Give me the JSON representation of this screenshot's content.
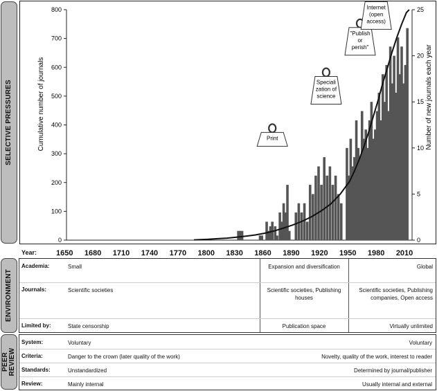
{
  "side_labels": {
    "selective": "SELECTIVE PRESSURES",
    "environment": "ENVIRONMENT",
    "peer_review": "PEER REVIEW"
  },
  "chart_data": {
    "type": "bar+line",
    "xlim": [
      1650,
      2016
    ],
    "left_axis": {
      "label": "Cumulative number of journals",
      "ylim": [
        0,
        800
      ],
      "ticks": [
        0,
        100,
        200,
        300,
        400,
        500,
        600,
        700,
        800
      ]
    },
    "right_axis": {
      "label": "Number of new journals each year",
      "ylim": [
        0,
        25
      ],
      "ticks": [
        0,
        5,
        10,
        15,
        20,
        25
      ]
    },
    "x_ticks": [
      1650,
      1680,
      1710,
      1740,
      1770,
      1800,
      1830,
      1860,
      1890,
      1920,
      1950,
      1980,
      2010
    ],
    "x_label": "Year:",
    "line_series": {
      "name": "Cumulative number of journals",
      "x": [
        1785,
        1800,
        1810,
        1820,
        1830,
        1840,
        1850,
        1860,
        1870,
        1880,
        1890,
        1900,
        1910,
        1920,
        1930,
        1940,
        1950,
        1955,
        1960,
        1965,
        1970,
        1975,
        1980,
        1985,
        1990,
        1995,
        2000,
        2005,
        2010,
        2013
      ],
      "y": [
        1,
        3,
        5,
        7,
        10,
        14,
        18,
        24,
        32,
        42,
        53,
        66,
        82,
        102,
        126,
        160,
        205,
        240,
        280,
        325,
        375,
        430,
        485,
        545,
        600,
        655,
        705,
        750,
        790,
        800
      ]
    },
    "bar_series": {
      "name": "Number of new journals each year",
      "x": [
        1832,
        1834,
        1836,
        1855,
        1857,
        1862,
        1864,
        1866,
        1868,
        1871,
        1873,
        1876,
        1878,
        1880,
        1882,
        1884,
        1886,
        1893,
        1896,
        1899,
        1902,
        1905,
        1908,
        1911,
        1914,
        1917,
        1920,
        1923,
        1926,
        1929,
        1932,
        1935,
        1938,
        1941,
        1947,
        1949,
        1951,
        1953,
        1955,
        1957,
        1959,
        1961,
        1963,
        1965,
        1967,
        1969,
        1971,
        1973,
        1975,
        1977,
        1979,
        1981,
        1983,
        1985,
        1987,
        1989,
        1991,
        1993,
        1995,
        1997,
        1999,
        2001,
        2003,
        2005,
        2007,
        2009,
        2011
      ],
      "y": [
        1,
        1,
        1,
        0.5,
        0.5,
        2,
        1,
        1.5,
        2,
        1.5,
        0.5,
        3,
        2,
        4,
        3,
        6,
        1,
        3,
        4,
        3,
        4,
        2,
        6,
        5,
        7,
        8,
        6,
        9,
        7,
        8,
        6,
        7,
        5,
        4,
        10,
        7,
        11,
        8,
        9,
        13,
        10,
        9,
        14,
        11,
        12,
        10,
        13,
        15,
        11,
        12,
        14,
        16,
        13,
        18,
        15,
        19,
        14,
        21,
        17,
        20,
        16,
        22,
        18,
        21,
        17,
        19,
        23
      ]
    },
    "annotations": [
      {
        "text": "Print",
        "year": 1868,
        "y": 350
      },
      {
        "text": "Speciali zation of science",
        "year": 1925,
        "y": 520
      },
      {
        "text": "\"Publish or perish\"",
        "year": 1961,
        "y": 690
      },
      {
        "text": "Internet (open access)",
        "year": 1978,
        "y": 780
      }
    ]
  },
  "table": {
    "academia": {
      "label": "Academia:",
      "c1": "Small",
      "c2": "Expansion and diversification",
      "c3": "Global"
    },
    "journals": {
      "label": "Journals:",
      "c1": "Scientific societies",
      "c2": "Scientific societies, Publishing houses",
      "c3": "Scientific societies, Publishing companies, Open access"
    },
    "limited": {
      "label": "Limited by:",
      "c1": "State censorship",
      "c2": "Publication space",
      "c3": "Virtually unlimited"
    },
    "system": {
      "label": "System:",
      "left": "Voluntary",
      "right": "Voluntary"
    },
    "criteria": {
      "label": "Criteria:",
      "left": "Danger to the crown (later quality of the work)",
      "right": "Novelty, quality of the work, interest to reader"
    },
    "standards": {
      "label": "Standards:",
      "left": "Unstandardized",
      "right": "Determined by journal/publisher"
    },
    "review": {
      "label": "Review:",
      "left": "Mainly internal",
      "right": "Usually internal and external"
    }
  }
}
